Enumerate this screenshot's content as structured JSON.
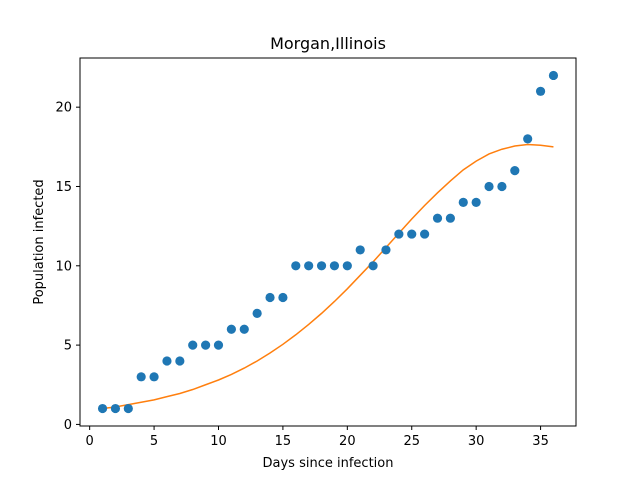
{
  "chart_data": {
    "type": "scatter",
    "title": "Morgan,Illinois",
    "xlabel": "Days since infection",
    "ylabel": "Population infected",
    "xlim": [
      -0.75,
      37.75
    ],
    "ylim": [
      -0.1,
      23.1
    ],
    "xticks": [
      0,
      5,
      10,
      15,
      20,
      25,
      30,
      35
    ],
    "yticks": [
      0,
      5,
      10,
      15,
      20
    ],
    "grid": false,
    "series": [
      {
        "kind": "scatter",
        "color": "#1f77b4",
        "x": [
          1,
          2,
          3,
          4,
          5,
          6,
          7,
          8,
          9,
          10,
          11,
          12,
          13,
          14,
          15,
          16,
          17,
          18,
          19,
          20,
          21,
          22,
          23,
          24,
          25,
          26,
          27,
          28,
          29,
          30,
          31,
          32,
          33,
          34,
          35,
          36
        ],
        "y": [
          1,
          1,
          1,
          3,
          3,
          4,
          4,
          5,
          5,
          5,
          6,
          6,
          7,
          8,
          8,
          10,
          10,
          10,
          10,
          10,
          11,
          10,
          11,
          12,
          12,
          12,
          13,
          13,
          14,
          14,
          15,
          15,
          16,
          18,
          21,
          22
        ]
      },
      {
        "kind": "line",
        "color": "#ff7f0e",
        "x": [
          1,
          2,
          3,
          4,
          5,
          6,
          7,
          8,
          9,
          10,
          11,
          12,
          13,
          14,
          15,
          16,
          17,
          18,
          19,
          20,
          21,
          22,
          23,
          24,
          25,
          26,
          27,
          28,
          29,
          30,
          31,
          32,
          33,
          34,
          35,
          36
        ],
        "y": [
          1.0,
          1.1,
          1.25,
          1.4,
          1.55,
          1.75,
          1.95,
          2.2,
          2.5,
          2.8,
          3.15,
          3.55,
          4.0,
          4.5,
          5.05,
          5.65,
          6.3,
          7.0,
          7.75,
          8.55,
          9.4,
          10.25,
          11.15,
          12.05,
          12.95,
          13.8,
          14.6,
          15.35,
          16.05,
          16.6,
          17.05,
          17.35,
          17.55,
          17.65,
          17.6,
          17.5
        ]
      }
    ]
  }
}
